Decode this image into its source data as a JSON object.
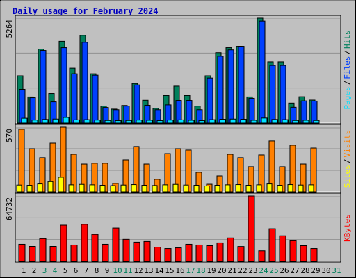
{
  "chart_data": [
    {
      "type": "bar",
      "title": "Daily usage for February 2024",
      "categories": [
        "1",
        "2",
        "3",
        "4",
        "5",
        "6",
        "7",
        "8",
        "9",
        "10",
        "11",
        "12",
        "13",
        "14",
        "15",
        "16",
        "17",
        "18",
        "19",
        "20",
        "21",
        "22",
        "23",
        "24",
        "25",
        "26",
        "27",
        "28",
        "29",
        "30",
        "31"
      ],
      "category_colors": [
        "#000000",
        "#000000",
        "#00805c",
        "#00805c",
        "#000000",
        "#000000",
        "#000000",
        "#000000",
        "#000000",
        "#00805c",
        "#00805c",
        "#000000",
        "#000000",
        "#000000",
        "#000000",
        "#000000",
        "#00805c",
        "#00805c",
        "#000000",
        "#000000",
        "#000000",
        "#000000",
        "#000000",
        "#00805c",
        "#00805c",
        "#000000",
        "#000000",
        "#000000",
        "#000000",
        "#000000",
        "#00805c"
      ],
      "legend_separator": "/",
      "ylim": [
        0,
        5264
      ],
      "yticks": [
        5264
      ],
      "series": [
        {
          "name": "Hits",
          "color": "#00805c",
          "values": [
            2370,
            1310,
            3710,
            1480,
            4100,
            2750,
            4400,
            2470,
            850,
            700,
            880,
            1980,
            1140,
            740,
            1380,
            1850,
            1380,
            850,
            2370,
            3530,
            3780,
            3850,
            1310,
            5264,
            3070,
            3070,
            1000,
            1320,
            1150,
            null,
            null
          ]
        },
        {
          "name": "Files",
          "color": "#0040ff",
          "values": [
            1690,
            1270,
            3640,
            1060,
            3780,
            2470,
            4050,
            2400,
            780,
            670,
            850,
            1910,
            890,
            670,
            910,
            1130,
            1130,
            670,
            2260,
            3350,
            3670,
            3850,
            1240,
            5120,
            2890,
            2890,
            790,
            1110,
            1100,
            null,
            null
          ]
        },
        {
          "name": "Pages",
          "color": "#00e0ff",
          "values": [
            240,
            150,
            180,
            200,
            280,
            160,
            170,
            150,
            130,
            120,
            130,
            150,
            140,
            120,
            150,
            160,
            140,
            120,
            170,
            190,
            200,
            190,
            140,
            250,
            180,
            170,
            130,
            140,
            130,
            null,
            null
          ]
        }
      ]
    },
    {
      "type": "bar",
      "ylim": [
        0,
        570
      ],
      "yticks": [
        570
      ],
      "legend_separator": "/",
      "series": [
        {
          "name": "Visits",
          "color": "#ff8000",
          "values": [
            552,
            380,
            301,
            429,
            570,
            331,
            245,
            252,
            252,
            74,
            282,
            399,
            245,
            111,
            337,
            380,
            368,
            172,
            67,
            141,
            331,
            301,
            221,
            325,
            448,
            221,
            411,
            245,
            386,
            null,
            null
          ]
        },
        {
          "name": "Sites",
          "color": "#ffff00",
          "values": [
            60,
            58,
            70,
            90,
            129,
            62,
            66,
            62,
            58,
            55,
            60,
            64,
            58,
            56,
            62,
            66,
            60,
            58,
            52,
            58,
            62,
            64,
            58,
            62,
            70,
            58,
            64,
            60,
            62,
            null,
            null
          ]
        }
      ]
    },
    {
      "type": "bar",
      "ylim": [
        0,
        64732
      ],
      "yticks": [
        64732
      ],
      "series": [
        {
          "name": "KBytes",
          "color": "#ff0000",
          "values": [
            16900,
            14800,
            22500,
            14800,
            35800,
            16200,
            36600,
            26700,
            16900,
            33000,
            21800,
            19000,
            19700,
            14100,
            12700,
            13400,
            16900,
            16200,
            15500,
            18300,
            23200,
            14700,
            64732,
            10500,
            32300,
            25300,
            20400,
            15500,
            12700,
            null,
            null
          ]
        }
      ]
    }
  ]
}
